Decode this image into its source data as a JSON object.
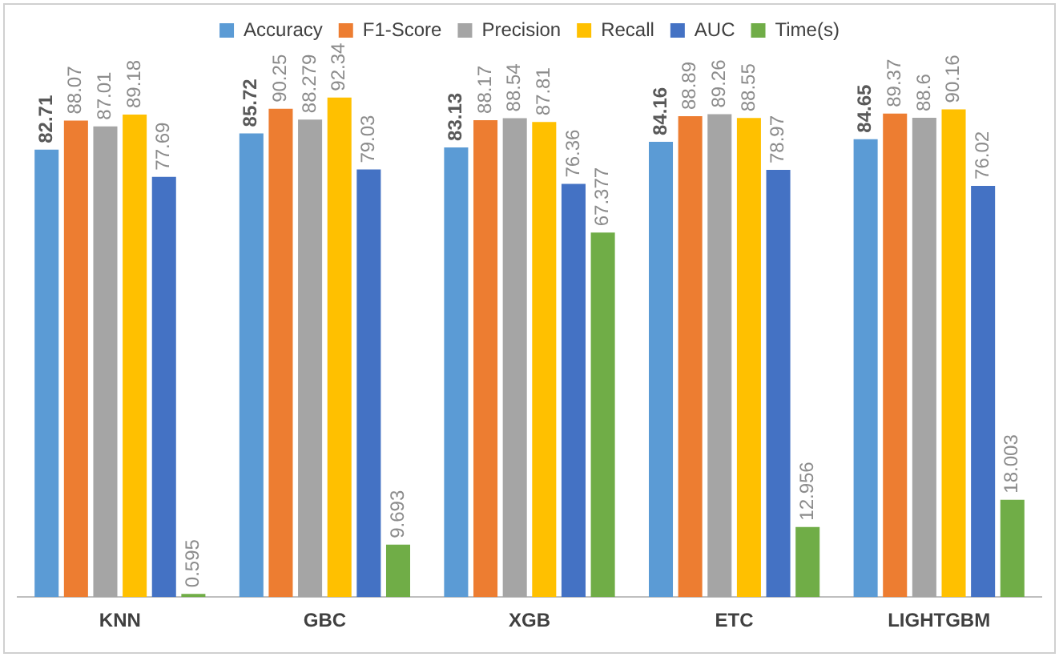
{
  "chart_data": {
    "type": "bar",
    "categories": [
      "KNN",
      "GBC",
      "XGB",
      "ETC",
      "LIGHTGBM"
    ],
    "series": [
      {
        "name": "Accuracy",
        "color": "#5b9bd5",
        "values": [
          82.71,
          85.72,
          83.13,
          84.16,
          84.65
        ]
      },
      {
        "name": "F1-Score",
        "color": "#ed7d31",
        "values": [
          88.07,
          90.25,
          88.17,
          88.89,
          89.37
        ]
      },
      {
        "name": "Precision",
        "color": "#a5a5a5",
        "values": [
          87.01,
          88.279,
          88.54,
          89.26,
          88.6
        ]
      },
      {
        "name": "Recall",
        "color": "#ffc000",
        "values": [
          89.18,
          92.34,
          87.81,
          88.55,
          90.16
        ]
      },
      {
        "name": "AUC",
        "color": "#4472c4",
        "values": [
          77.69,
          79.03,
          76.36,
          78.97,
          76.02
        ]
      },
      {
        "name": "Time(s)",
        "color": "#70ad47",
        "values": [
          0.595,
          9.693,
          67.377,
          12.956,
          18.003
        ]
      }
    ],
    "legend": "top",
    "data_labels": true,
    "grid": false
  }
}
